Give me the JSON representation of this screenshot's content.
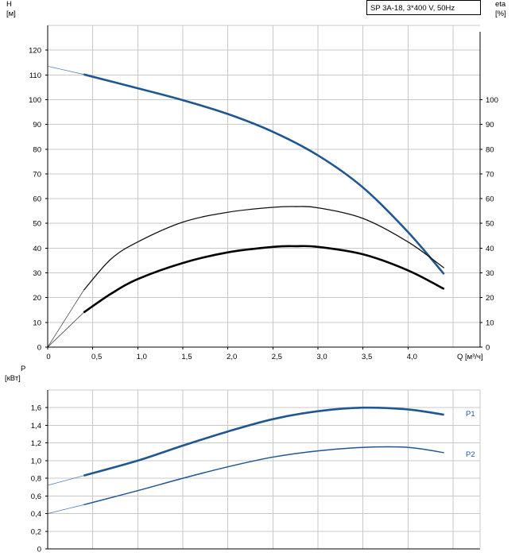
{
  "chart_data": [
    {
      "type": "line",
      "title": "SP 3A-18, 3*400 V, 50Hz",
      "ylabel_left": "H\n[м]",
      "ylabel_right": "eta\n[%]",
      "xlabel": "Q [м³/ч]",
      "xlim": [
        0,
        4.8
      ],
      "ylim": [
        0,
        130
      ],
      "y_right_lim": [
        0,
        130
      ],
      "x_ticks": [
        "0",
        "0,5",
        "1,0",
        "1,5",
        "2,0",
        "2,5",
        "3,0",
        "3,5",
        "4,0"
      ],
      "y_ticks_left": [
        "0",
        "10",
        "20",
        "30",
        "40",
        "50",
        "60",
        "70",
        "80",
        "90",
        "100",
        "110",
        "120"
      ],
      "y_ticks_right": [
        "0",
        "10",
        "20",
        "30",
        "40",
        "50",
        "60",
        "70",
        "80",
        "90",
        "100"
      ],
      "grid": true,
      "series": [
        {
          "axis": "left",
          "color": "#1f5793",
          "x": [
            0,
            0.4,
            1.0,
            1.5,
            2.0,
            2.5,
            3.0,
            3.5,
            4.0,
            4.4
          ],
          "y": [
            113.5,
            110.2,
            104.6,
            99.8,
            94.2,
            87.0,
            77.5,
            64.5,
            46.5,
            29.5
          ],
          "range": [
            0.4,
            4.4
          ]
        },
        {
          "axis": "right",
          "color": "#111111",
          "x": [
            0,
            0.4,
            0.7,
            1.0,
            1.5,
            2.0,
            2.5,
            2.75,
            3.0,
            3.5,
            4.0,
            4.4
          ],
          "y": [
            0,
            23.0,
            35.5,
            42.5,
            50.5,
            54.5,
            56.5,
            56.8,
            56.3,
            52.0,
            42.5,
            32.0
          ],
          "range": [
            0.4,
            4.4
          ]
        },
        {
          "axis": "right",
          "color": "#000000",
          "x": [
            0,
            0.4,
            0.7,
            1.0,
            1.5,
            2.0,
            2.5,
            2.75,
            3.0,
            3.5,
            4.0,
            4.4
          ],
          "y": [
            0,
            14.0,
            21.5,
            27.5,
            34.0,
            38.3,
            40.5,
            40.8,
            40.5,
            37.5,
            31.0,
            23.5
          ],
          "range": [
            0.4,
            4.4
          ]
        }
      ]
    },
    {
      "type": "line",
      "ylabel": "P\n[кВт]",
      "xlim": [
        0,
        4.8
      ],
      "ylim": [
        0,
        1.8
      ],
      "y_ticks": [
        "0",
        "0,2",
        "0,4",
        "0,6",
        "0,8",
        "1,0",
        "1,2",
        "1,4",
        "1,6"
      ],
      "grid": true,
      "series": [
        {
          "name": "P1",
          "color": "#1f5793",
          "x": [
            0,
            0.4,
            1.0,
            1.5,
            2.0,
            2.5,
            3.0,
            3.5,
            4.0,
            4.4
          ],
          "y": [
            0.72,
            0.83,
            1.0,
            1.17,
            1.33,
            1.47,
            1.56,
            1.6,
            1.58,
            1.52
          ],
          "range": [
            0.4,
            4.4
          ]
        },
        {
          "name": "P2",
          "color": "#1f5793",
          "x": [
            0,
            0.4,
            1.0,
            1.5,
            2.0,
            2.5,
            3.0,
            3.5,
            4.0,
            4.4
          ],
          "y": [
            0.4,
            0.5,
            0.66,
            0.8,
            0.93,
            1.04,
            1.11,
            1.15,
            1.15,
            1.09
          ],
          "range": [
            0.4,
            4.4
          ]
        }
      ]
    }
  ]
}
